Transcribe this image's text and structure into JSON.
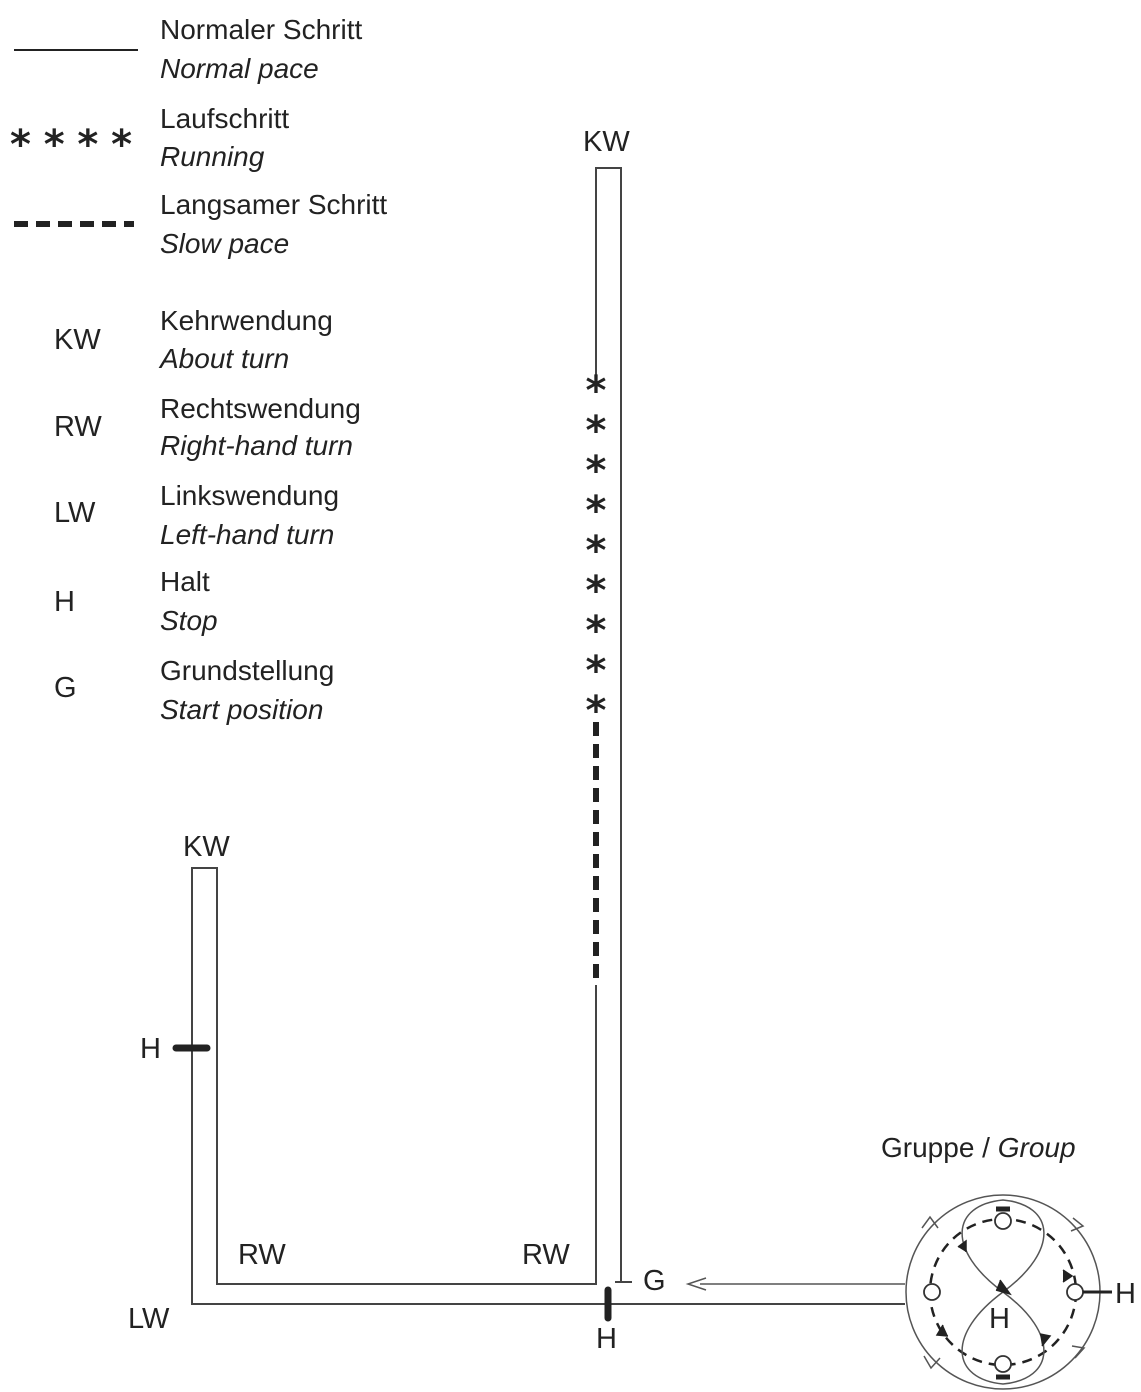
{
  "legend": {
    "line_types": [
      {
        "symbol": "line",
        "de": "Normaler Schritt",
        "en": "Normal pace"
      },
      {
        "symbol": "stars",
        "symbol_text": "* * * *",
        "de": "Laufschritt",
        "en": "Running"
      },
      {
        "symbol": "dashes",
        "de": "Langsamer Schritt",
        "en": "Slow pace"
      }
    ],
    "abbreviations": [
      {
        "abbr": "KW",
        "de": "Kehrwendung",
        "en": "About turn"
      },
      {
        "abbr": "RW",
        "de": "Rechtswendung",
        "en": "Right-hand turn"
      },
      {
        "abbr": "LW",
        "de": "Linkswendung",
        "en": "Left-hand turn"
      },
      {
        "abbr": "H",
        "de": "Halt",
        "en": "Stop"
      },
      {
        "abbr": "G",
        "de": "Grundstellung",
        "en": "Start position"
      }
    ]
  },
  "course": {
    "kw_top": "KW",
    "kw_left": "KW",
    "h_left": "H",
    "rw_left": "RW",
    "rw_right": "RW",
    "lw": "LW",
    "g": "G",
    "h_bottom": "H",
    "running_star": "*",
    "running_count": 9
  },
  "group": {
    "title_de": "Gruppe",
    "separator": " / ",
    "title_en": "Group",
    "h_center": "H",
    "h_right": "H"
  }
}
